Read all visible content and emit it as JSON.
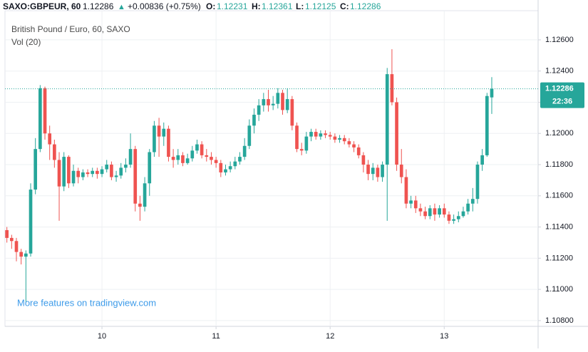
{
  "header": {
    "symbol": "SAXO:GBPEUR, 60",
    "last": "1.12286",
    "arrow": "▲",
    "change": "+0.00836 (+0.75%)",
    "o_label": "O:",
    "o": "1.12231",
    "h_label": "H:",
    "h": "1.12361",
    "l_label": "L:",
    "l": "1.12125",
    "c_label": "C:",
    "c": "1.12286"
  },
  "chart_data": {
    "type": "candlestick",
    "title": "British Pound / Euro, 60, SAXO",
    "subtitle": "Vol (20)",
    "watermark": "More features on tradingview.com",
    "price_tag": "1.12286",
    "countdown": "22:36",
    "up_color": "#26a69a",
    "down_color": "#ef5350",
    "grid": true,
    "xlim": [
      3.6,
      115.75
    ],
    "ylim": [
      1.10763,
      1.12787
    ],
    "xticks": [
      {
        "value": 24,
        "label": "10"
      },
      {
        "value": 48,
        "label": "11"
      },
      {
        "value": 72,
        "label": "12"
      },
      {
        "value": 96,
        "label": "13"
      }
    ],
    "yticks": [
      {
        "value": 1.108,
        "label": "1.10800"
      },
      {
        "value": 1.11,
        "label": "1.11000"
      },
      {
        "value": 1.112,
        "label": "1.11200"
      },
      {
        "value": 1.114,
        "label": "1.11400"
      },
      {
        "value": 1.116,
        "label": "1.11600"
      },
      {
        "value": 1.118,
        "label": "1.11800"
      },
      {
        "value": 1.12,
        "label": "1.12000"
      },
      {
        "value": 1.122,
        "label": "1.12200"
      },
      {
        "value": 1.124,
        "label": "1.12400"
      },
      {
        "value": 1.126,
        "label": "1.12600"
      }
    ],
    "x": [
      4,
      5,
      6,
      7,
      8,
      9,
      10,
      11,
      12,
      13,
      14,
      15,
      16,
      17,
      18,
      19,
      20,
      21,
      22,
      23,
      24,
      25,
      26,
      27,
      28,
      29,
      30,
      31,
      32,
      33,
      34,
      35,
      36,
      37,
      38,
      39,
      40,
      41,
      42,
      43,
      44,
      45,
      46,
      47,
      48,
      49,
      50,
      51,
      52,
      53,
      54,
      55,
      56,
      57,
      58,
      59,
      60,
      61,
      62,
      63,
      64,
      65,
      66,
      67,
      68,
      69,
      70,
      71,
      72,
      73,
      74,
      75,
      76,
      77,
      78,
      79,
      80,
      81,
      82,
      83,
      84,
      85,
      86,
      87,
      88,
      89,
      90,
      91,
      92,
      93,
      94,
      95,
      96,
      97,
      98,
      99,
      100,
      101,
      102,
      103,
      104,
      105,
      106
    ],
    "open": [
      1.1138,
      1.1133,
      1.1131,
      1.1124,
      1.1121,
      1.1123,
      1.1164,
      1.119,
      1.1229,
      1.12,
      1.1193,
      1.1183,
      1.1166,
      1.1185,
      1.1168,
      1.1176,
      1.1172,
      1.1175,
      1.1174,
      1.1176,
      1.1174,
      1.1177,
      1.118,
      1.1172,
      1.1173,
      1.1178,
      1.118,
      1.119,
      1.1155,
      1.1153,
      1.1168,
      1.1188,
      1.1205,
      1.1198,
      1.1203,
      1.1185,
      1.1183,
      1.1186,
      1.1181,
      1.1184,
      1.1189,
      1.1193,
      1.1186,
      1.1185,
      1.1183,
      1.1181,
      1.1175,
      1.1177,
      1.1179,
      1.1182,
      1.1185,
      1.1192,
      1.1205,
      1.1212,
      1.1218,
      1.1222,
      1.1218,
      1.1219,
      1.1226,
      1.1215,
      1.1222,
      1.1205,
      1.119,
      1.1189,
      1.1198,
      1.1201,
      1.1198,
      1.12,
      1.1199,
      1.1198,
      1.1196,
      1.1197,
      1.1195,
      1.1193,
      1.1191,
      1.1186,
      1.118,
      1.1174,
      1.1178,
      1.1172,
      1.118,
      1.1238,
      1.122,
      1.118,
      1.1172,
      1.1155,
      1.1157,
      1.1152,
      1.115,
      1.1147,
      1.1152,
      1.1148,
      1.1152,
      1.1148,
      1.1144,
      1.1145,
      1.1147,
      1.115,
      1.1155,
      1.1158,
      1.118,
      1.1186,
      1.12231
    ],
    "high": [
      1.114,
      1.1135,
      1.1133,
      1.1126,
      1.1125,
      1.1168,
      1.1197,
      1.1231,
      1.123,
      1.1205,
      1.1196,
      1.1188,
      1.1188,
      1.1186,
      1.118,
      1.1178,
      1.1177,
      1.1177,
      1.1178,
      1.1178,
      1.1179,
      1.1183,
      1.1182,
      1.1176,
      1.1181,
      1.1184,
      1.12,
      1.1192,
      1.116,
      1.1172,
      1.119,
      1.1208,
      1.121,
      1.1207,
      1.1205,
      1.119,
      1.119,
      1.1188,
      1.1187,
      1.1192,
      1.1196,
      1.1195,
      1.119,
      1.1188,
      1.1185,
      1.1183,
      1.118,
      1.1182,
      1.1185,
      1.1188,
      1.1197,
      1.1209,
      1.1216,
      1.1222,
      1.1226,
      1.1228,
      1.1224,
      1.1229,
      1.1228,
      1.1229,
      1.1224,
      1.1207,
      1.1194,
      1.1201,
      1.1203,
      1.1203,
      1.1202,
      1.1202,
      1.1201,
      1.12,
      1.1199,
      1.1199,
      1.1197,
      1.1195,
      1.1193,
      1.1188,
      1.1183,
      1.1181,
      1.118,
      1.1182,
      1.1242,
      1.1254,
      1.1223,
      1.119,
      1.1177,
      1.116,
      1.116,
      1.1155,
      1.1153,
      1.1154,
      1.1155,
      1.1154,
      1.1155,
      1.115,
      1.1148,
      1.115,
      1.1153,
      1.1158,
      1.1165,
      1.1182,
      1.119,
      1.1226,
      1.12361
    ],
    "low": [
      1.113,
      1.1126,
      1.1118,
      1.1116,
      1.1092,
      1.1121,
      1.1161,
      1.1188,
      1.1196,
      1.1183,
      1.1178,
      1.1144,
      1.1163,
      1.1165,
      1.1166,
      1.1168,
      1.117,
      1.1172,
      1.1172,
      1.1171,
      1.1172,
      1.1175,
      1.117,
      1.1169,
      1.1171,
      1.1175,
      1.1178,
      1.115,
      1.1144,
      1.115,
      1.116,
      1.1185,
      1.1185,
      1.1192,
      1.1182,
      1.1178,
      1.118,
      1.1179,
      1.118,
      1.1182,
      1.1187,
      1.1184,
      1.1182,
      1.118,
      1.1178,
      1.1172,
      1.1173,
      1.1175,
      1.1177,
      1.118,
      1.1183,
      1.119,
      1.12,
      1.1208,
      1.1214,
      1.1214,
      1.1215,
      1.1216,
      1.1212,
      1.1213,
      1.1202,
      1.1188,
      1.1186,
      1.1187,
      1.1195,
      1.1196,
      1.1196,
      1.1197,
      1.1196,
      1.1194,
      1.1194,
      1.1193,
      1.1191,
      1.1188,
      1.1184,
      1.1175,
      1.117,
      1.117,
      1.1169,
      1.1169,
      1.1144,
      1.1218,
      1.1176,
      1.1168,
      1.1152,
      1.1152,
      1.1149,
      1.1147,
      1.1145,
      1.1145,
      1.1144,
      1.1146,
      1.1146,
      1.1142,
      1.1142,
      1.1143,
      1.1146,
      1.1148,
      1.115,
      1.1155,
      1.1176,
      1.1185,
      1.12125
    ],
    "close": [
      1.1133,
      1.1131,
      1.1124,
      1.1121,
      1.1123,
      1.1164,
      1.119,
      1.1229,
      1.12,
      1.1193,
      1.1183,
      1.1166,
      1.1185,
      1.1168,
      1.1176,
      1.1172,
      1.1175,
      1.1174,
      1.1176,
      1.1174,
      1.1177,
      1.118,
      1.1172,
      1.1173,
      1.1178,
      1.118,
      1.119,
      1.1155,
      1.1153,
      1.1168,
      1.1188,
      1.1205,
      1.1198,
      1.1203,
      1.1185,
      1.1183,
      1.1186,
      1.1181,
      1.1184,
      1.1189,
      1.1193,
      1.1186,
      1.1185,
      1.1183,
      1.1181,
      1.1175,
      1.1177,
      1.1179,
      1.1182,
      1.1185,
      1.1192,
      1.1205,
      1.1212,
      1.1218,
      1.1222,
      1.1218,
      1.1219,
      1.1226,
      1.1215,
      1.1222,
      1.1205,
      1.119,
      1.1189,
      1.1198,
      1.1201,
      1.1198,
      1.12,
      1.1199,
      1.1198,
      1.1196,
      1.1197,
      1.1195,
      1.1193,
      1.1191,
      1.1186,
      1.118,
      1.1174,
      1.1178,
      1.1172,
      1.118,
      1.1238,
      1.122,
      1.118,
      1.1172,
      1.1155,
      1.1157,
      1.1152,
      1.115,
      1.1147,
      1.1152,
      1.1148,
      1.1152,
      1.1148,
      1.1144,
      1.1145,
      1.1147,
      1.115,
      1.1155,
      1.1158,
      1.118,
      1.1186,
      1.1224,
      1.12286
    ]
  }
}
